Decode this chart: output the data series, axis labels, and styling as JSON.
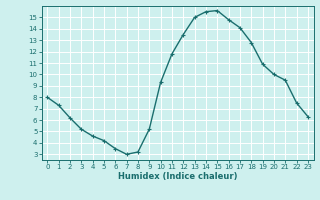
{
  "x": [
    0,
    1,
    2,
    3,
    4,
    5,
    6,
    7,
    8,
    9,
    10,
    11,
    12,
    13,
    14,
    15,
    16,
    17,
    18,
    19,
    20,
    21,
    22,
    23
  ],
  "y": [
    8.0,
    7.3,
    6.2,
    5.2,
    4.6,
    4.2,
    3.5,
    3.0,
    3.2,
    5.2,
    9.3,
    11.8,
    13.5,
    15.0,
    15.5,
    15.6,
    14.8,
    14.1,
    12.8,
    10.9,
    10.0,
    9.5,
    7.5,
    6.3
  ],
  "xlabel": "Humidex (Indice chaleur)",
  "bg_color": "#cef0ee",
  "line_color": "#1a6e6e",
  "grid_color": "#ffffff",
  "xlim": [
    -0.5,
    23.5
  ],
  "ylim": [
    2.5,
    16.0
  ],
  "yticks": [
    3,
    4,
    5,
    6,
    7,
    8,
    9,
    10,
    11,
    12,
    13,
    14,
    15
  ],
  "xticks": [
    0,
    1,
    2,
    3,
    4,
    5,
    6,
    7,
    8,
    9,
    10,
    11,
    12,
    13,
    14,
    15,
    16,
    17,
    18,
    19,
    20,
    21,
    22,
    23
  ],
  "marker": "+",
  "marker_size": 3,
  "linewidth": 1.0,
  "tick_fontsize": 5.0,
  "xlabel_fontsize": 6.0
}
